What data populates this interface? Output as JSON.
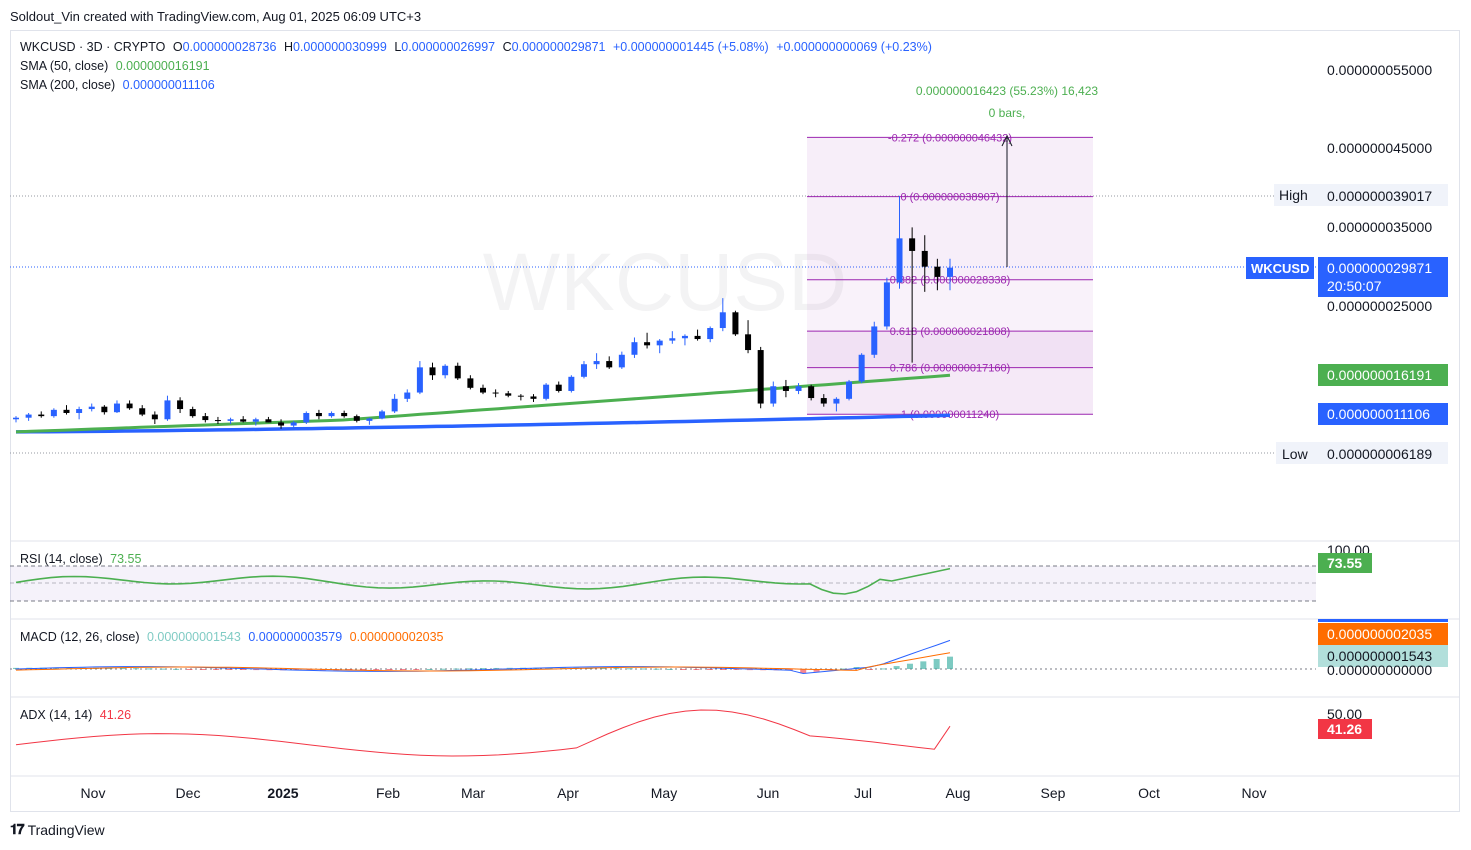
{
  "header": {
    "caption": "Soldout_Vin created with TradingView.com, Aug 01, 2025 06:09 UTC+3"
  },
  "legend": {
    "symbol": "WKCUSD · 3D · CRYPTO",
    "o_label": "O",
    "o_value": "0.000000028736",
    "h_label": "H",
    "h_value": "0.000000030999",
    "l_label": "L",
    "l_value": "0.000000026997",
    "c_label": "C",
    "c_value": "0.000000029871",
    "change": "+0.000000001445 (+5.08%)",
    "change2": "+0.000000000069 (+0.23%)",
    "sma50_label": "SMA (50, close)",
    "sma50_value": "0.000000016191",
    "sma200_label": "SMA (200, close)",
    "sma200_value": "0.000000011106"
  },
  "watermark": "WKCUSD",
  "price_axis": {
    "ticks": [
      "0.000000055000",
      "0.000000045000",
      "0.000000035000",
      "0.000000025000"
    ],
    "high_label": "High",
    "high_value": "0.000000039017",
    "low_label": "Low",
    "low_value": "0.000000006189",
    "symbol_tag": "WKCUSD",
    "last_price": "0.000000029871",
    "countdown": "20:50:07",
    "sma50_tag": "0.000000016191",
    "sma200_tag": "0.000000011106"
  },
  "measure": {
    "line1": "0.000000016423 (55.23%) 16,423",
    "line2": "0 bars,"
  },
  "fib_levels": [
    {
      "ratio": "-0.272",
      "label": "-0.272 (0.000000046432)",
      "price": 46.432
    },
    {
      "ratio": "0",
      "label": "0 (0.000000038907)",
      "price": 38.907
    },
    {
      "ratio": "0.382",
      "label": "0.382 (0.000000028338)",
      "price": 28.338
    },
    {
      "ratio": "0.618",
      "label": "0.618 (0.000000021808)",
      "price": 21.808
    },
    {
      "ratio": "0.786",
      "label": "0.786 (0.000000017160)",
      "price": 17.16
    },
    {
      "ratio": "1",
      "label": "1 (0.000000011240)",
      "price": 11.24
    }
  ],
  "rsi": {
    "label": "RSI (14, close)",
    "value": "73.55",
    "axis_tick": "100.00"
  },
  "macd": {
    "label": "MACD (12, 26, close)",
    "hist": "0.000000001543",
    "macd": "0.000000003579",
    "signal": "0.000000002035",
    "axis_tick": "0.000000000000",
    "signal_tag": "0.000000002035",
    "hist_tag": "0.000000001543"
  },
  "adx": {
    "label": "ADX (14, 14)",
    "value": "41.26",
    "axis_tick": "50.00"
  },
  "time_axis": [
    "Nov",
    "Dec",
    "2025",
    "Feb",
    "Mar",
    "Apr",
    "May",
    "Jun",
    "Jul",
    "Aug",
    "Sep",
    "Oct",
    "Nov"
  ],
  "footer": {
    "brand": "TradingView"
  },
  "colors": {
    "up": "#2962ff",
    "down": "#000000",
    "sma50": "#4caf50",
    "sma200": "#2962ff",
    "fib": "#9c27b0",
    "rsi": "#4caf50",
    "macd": "#2962ff",
    "signal": "#ff6d00",
    "adx": "#f23645"
  },
  "chart_data": {
    "type": "candlestick",
    "unit": "price in units of 1e-9 USD",
    "interval": "3D",
    "ohlc_approx": [
      [
        10.6,
        11.0,
        10.2,
        10.8
      ],
      [
        10.8,
        11.4,
        10.4,
        11.2
      ],
      [
        11.2,
        11.6,
        10.8,
        11.0
      ],
      [
        11.0,
        12.0,
        10.8,
        11.8
      ],
      [
        11.8,
        12.4,
        11.2,
        11.4
      ],
      [
        11.4,
        12.2,
        10.6,
        11.9
      ],
      [
        11.9,
        12.6,
        11.6,
        12.2
      ],
      [
        12.2,
        12.4,
        11.2,
        11.5
      ],
      [
        11.5,
        13.0,
        11.4,
        12.6
      ],
      [
        12.6,
        13.0,
        11.8,
        12.0
      ],
      [
        12.0,
        12.4,
        11.0,
        11.2
      ],
      [
        11.2,
        11.6,
        10.0,
        10.6
      ],
      [
        10.6,
        13.6,
        10.4,
        13.0
      ],
      [
        13.0,
        13.4,
        11.4,
        11.9
      ],
      [
        11.9,
        12.2,
        10.8,
        11.0
      ],
      [
        11.0,
        11.4,
        10.2,
        10.5
      ],
      [
        10.5,
        10.9,
        10.0,
        10.4
      ],
      [
        10.4,
        10.8,
        10.0,
        10.6
      ],
      [
        10.6,
        11.0,
        10.2,
        10.3
      ],
      [
        10.3,
        10.8,
        9.8,
        10.6
      ],
      [
        10.6,
        10.9,
        10.2,
        10.2
      ],
      [
        10.2,
        10.6,
        9.4,
        9.8
      ],
      [
        9.8,
        10.4,
        9.4,
        10.2
      ],
      [
        10.2,
        11.6,
        10.0,
        11.4
      ],
      [
        11.4,
        11.8,
        10.6,
        11.0
      ],
      [
        11.0,
        11.6,
        10.8,
        11.4
      ],
      [
        11.4,
        11.7,
        10.8,
        11.0
      ],
      [
        11.0,
        11.2,
        10.2,
        10.4
      ],
      [
        10.4,
        10.8,
        9.9,
        10.7
      ],
      [
        10.7,
        11.8,
        10.6,
        11.6
      ],
      [
        11.6,
        13.8,
        11.4,
        13.2
      ],
      [
        13.2,
        14.4,
        12.8,
        14.0
      ],
      [
        14.0,
        18.0,
        13.8,
        17.2
      ],
      [
        17.2,
        17.8,
        15.6,
        16.2
      ],
      [
        16.2,
        17.6,
        15.8,
        17.4
      ],
      [
        17.4,
        17.8,
        15.6,
        15.8
      ],
      [
        15.8,
        16.2,
        14.4,
        14.6
      ],
      [
        14.6,
        15.0,
        13.8,
        14.0
      ],
      [
        14.0,
        14.4,
        13.4,
        13.9
      ],
      [
        13.9,
        14.2,
        13.4,
        13.6
      ],
      [
        13.6,
        13.8,
        13.0,
        13.5
      ],
      [
        13.5,
        13.8,
        12.8,
        13.2
      ],
      [
        13.2,
        15.2,
        13.0,
        15.0
      ],
      [
        15.0,
        15.4,
        14.0,
        14.2
      ],
      [
        14.2,
        16.2,
        14.0,
        16.0
      ],
      [
        16.0,
        18.0,
        15.8,
        17.6
      ],
      [
        17.6,
        19.0,
        17.0,
        18.0
      ],
      [
        18.0,
        18.6,
        17.0,
        17.2
      ],
      [
        17.2,
        19.2,
        17.0,
        18.8
      ],
      [
        18.8,
        21.0,
        18.4,
        20.4
      ],
      [
        20.4,
        21.6,
        19.6,
        20.0
      ],
      [
        20.0,
        20.8,
        19.0,
        20.6
      ],
      [
        20.6,
        21.8,
        20.2,
        20.9
      ],
      [
        20.9,
        21.4,
        20.0,
        21.2
      ],
      [
        21.2,
        22.0,
        20.6,
        20.8
      ],
      [
        20.8,
        22.4,
        20.4,
        22.2
      ],
      [
        22.2,
        26.0,
        21.8,
        24.2
      ],
      [
        24.2,
        24.4,
        21.2,
        21.4
      ],
      [
        21.4,
        23.2,
        19.0,
        19.4
      ],
      [
        19.4,
        19.8,
        12.0,
        12.6
      ],
      [
        12.6,
        15.4,
        12.2,
        14.8
      ],
      [
        14.8,
        15.6,
        13.4,
        14.2
      ],
      [
        14.2,
        15.2,
        13.8,
        14.8
      ],
      [
        14.8,
        15.0,
        13.0,
        13.3
      ],
      [
        13.3,
        13.8,
        12.2,
        12.6
      ],
      [
        12.6,
        13.4,
        11.6,
        13.2
      ],
      [
        13.2,
        15.6,
        13.0,
        15.4
      ],
      [
        15.4,
        19.0,
        15.2,
        18.8
      ],
      [
        18.8,
        23.0,
        18.4,
        22.4
      ],
      [
        22.4,
        28.6,
        22.0,
        28.0
      ],
      [
        28.0,
        39.0,
        27.2,
        33.6
      ],
      [
        33.6,
        35.0,
        17.8,
        32.0
      ],
      [
        32.0,
        34.0,
        26.8,
        30.0
      ],
      [
        30.0,
        31.0,
        27.0,
        28.7
      ],
      [
        28.7,
        31.0,
        27.0,
        29.87
      ]
    ],
    "sma50_approx_start": 9.0,
    "sma50_approx_end": 16.191,
    "sma200_approx_start": 9.0,
    "sma200_approx_end": 11.106,
    "price_ticks": [
      55,
      45,
      35,
      25
    ],
    "last_close": 29.871,
    "high": 39.017,
    "low": 6.189,
    "rsi_last": 73.55,
    "macd_last": 3.579,
    "signal_last": 2.035,
    "hist_last": 1.543,
    "adx_last": 41.26
  }
}
